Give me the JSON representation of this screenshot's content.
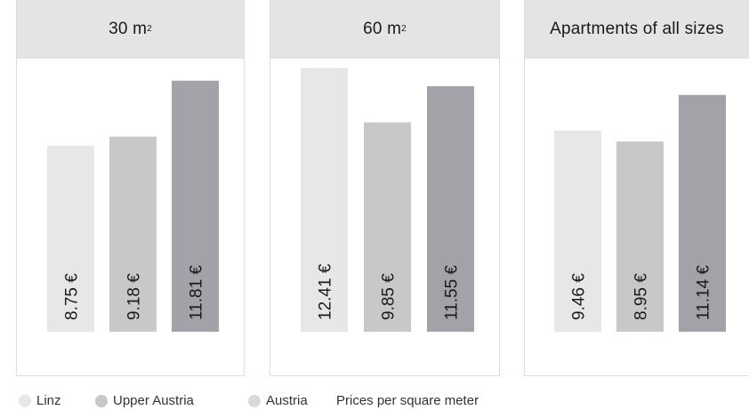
{
  "chart_data": [
    {
      "type": "bar",
      "title": "30 m",
      "title_sup": "2",
      "categories": [
        "Linz",
        "Upper Austria",
        "Austria"
      ],
      "values": [
        8.75,
        9.18,
        11.81
      ],
      "value_labels": [
        "8.75 €",
        "9.18 €",
        "11.81 €"
      ],
      "colors": [
        "#e7e7e8",
        "#c9c7ca",
        "#a1a3a8"
      ]
    },
    {
      "type": "bar",
      "title": "60 m",
      "title_sup": "2",
      "categories": [
        "Linz",
        "Upper Austria",
        "Austria"
      ],
      "values": [
        12.41,
        9.85,
        11.55
      ],
      "value_labels": [
        "12.41 €",
        "9.85 €",
        "11.55 €"
      ],
      "colors": [
        "#e7e7e8",
        "#c9c7ca",
        "#a1a3a8"
      ]
    },
    {
      "type": "bar",
      "title": "Apartments of all sizes",
      "title_sup": "",
      "categories": [
        "Linz",
        "Upper Austria",
        "Austria"
      ],
      "values": [
        9.46,
        8.95,
        11.14
      ],
      "value_labels": [
        "9.46 €",
        "8.95 €",
        "11.14 €"
      ],
      "colors": [
        "#e7e7e8",
        "#c9c7ca",
        "#a1a3a8"
      ]
    }
  ],
  "legend": {
    "items": [
      {
        "label": "Linz",
        "color": "#e7e7e8"
      },
      {
        "label": "Upper Austria",
        "color": "#c9c7ca"
      },
      {
        "label": "Austria",
        "color": "#d9d9da"
      }
    ],
    "note": "Prices per square meter"
  }
}
